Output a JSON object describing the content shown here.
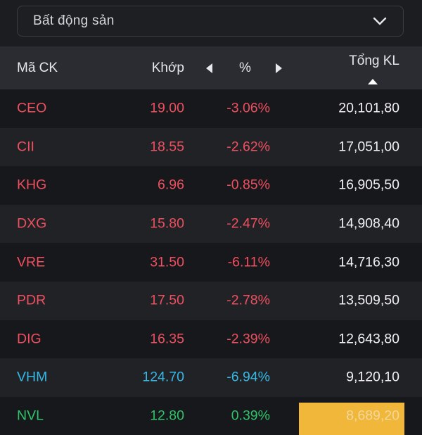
{
  "filter": {
    "selected": "Bất động sản"
  },
  "columns": {
    "symbol": "Mã CK",
    "price": "Khớp",
    "change": "%",
    "volume": "Tổng KL"
  },
  "colors": {
    "down": "#ef4f5f",
    "floor": "#35b8e6",
    "up": "#2fc46c",
    "highlight": "#f0b73a"
  },
  "rows": [
    {
      "symbol": "CEO",
      "price": "19.00",
      "change": "-3.06%",
      "volume": "20,101,80",
      "trend": "down"
    },
    {
      "symbol": "CII",
      "price": "18.55",
      "change": "-2.62%",
      "volume": "17,051,00",
      "trend": "down"
    },
    {
      "symbol": "KHG",
      "price": "6.96",
      "change": "-0.85%",
      "volume": "16,905,50",
      "trend": "down"
    },
    {
      "symbol": "DXG",
      "price": "15.80",
      "change": "-2.47%",
      "volume": "14,908,40",
      "trend": "down"
    },
    {
      "symbol": "VRE",
      "price": "31.50",
      "change": "-6.11%",
      "volume": "14,716,30",
      "trend": "down"
    },
    {
      "symbol": "PDR",
      "price": "17.50",
      "change": "-2.78%",
      "volume": "13,509,50",
      "trend": "down"
    },
    {
      "symbol": "DIG",
      "price": "16.35",
      "change": "-2.39%",
      "volume": "12,643,80",
      "trend": "down"
    },
    {
      "symbol": "VHM",
      "price": "124.70",
      "change": "-6.94%",
      "volume": "9,120,10",
      "trend": "floor"
    },
    {
      "symbol": "NVL",
      "price": "12.80",
      "change": "0.39%",
      "volume": "8,689,20",
      "trend": "up",
      "highlight": true
    }
  ]
}
